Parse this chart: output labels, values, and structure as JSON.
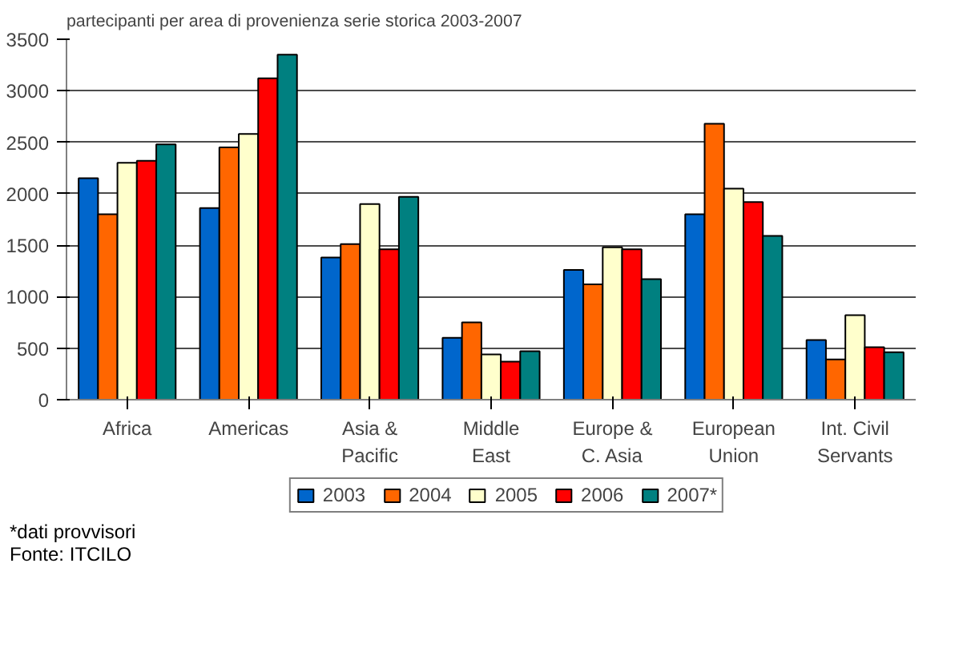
{
  "chart_data": {
    "type": "bar",
    "title": "partecipanti per area di provenienza serie storica 2003-2007",
    "categories": [
      "Africa",
      "Americas",
      "Asia &\nPacific",
      "Middle\nEast",
      "Europe &\nC. Asia",
      "European\nUnion",
      "Int. Civil\nServants"
    ],
    "series": [
      {
        "name": "2003",
        "color": "#0066cc",
        "values": [
          2150,
          1860,
          1380,
          600,
          1260,
          1800,
          580
        ]
      },
      {
        "name": "2004",
        "color": "#ff6600",
        "values": [
          1800,
          2450,
          1510,
          750,
          1120,
          2680,
          390
        ]
      },
      {
        "name": "2005",
        "color": "#ffffcc",
        "values": [
          2300,
          2580,
          1900,
          440,
          1480,
          2050,
          820
        ]
      },
      {
        "name": "2006",
        "color": "#ff0000",
        "values": [
          2320,
          3120,
          1460,
          370,
          1460,
          1920,
          510
        ]
      },
      {
        "name": "2007*",
        "color": "#008080",
        "values": [
          2480,
          3350,
          1970,
          470,
          1170,
          1590,
          460
        ]
      }
    ],
    "ylim": [
      0,
      3500
    ],
    "yticks": [
      0,
      500,
      1000,
      1500,
      2000,
      2500,
      3000,
      3500
    ],
    "grid": "y",
    "legend": "bottom",
    "annotations": [
      "*dati provvisori",
      "Fonte: ITCILO"
    ]
  }
}
